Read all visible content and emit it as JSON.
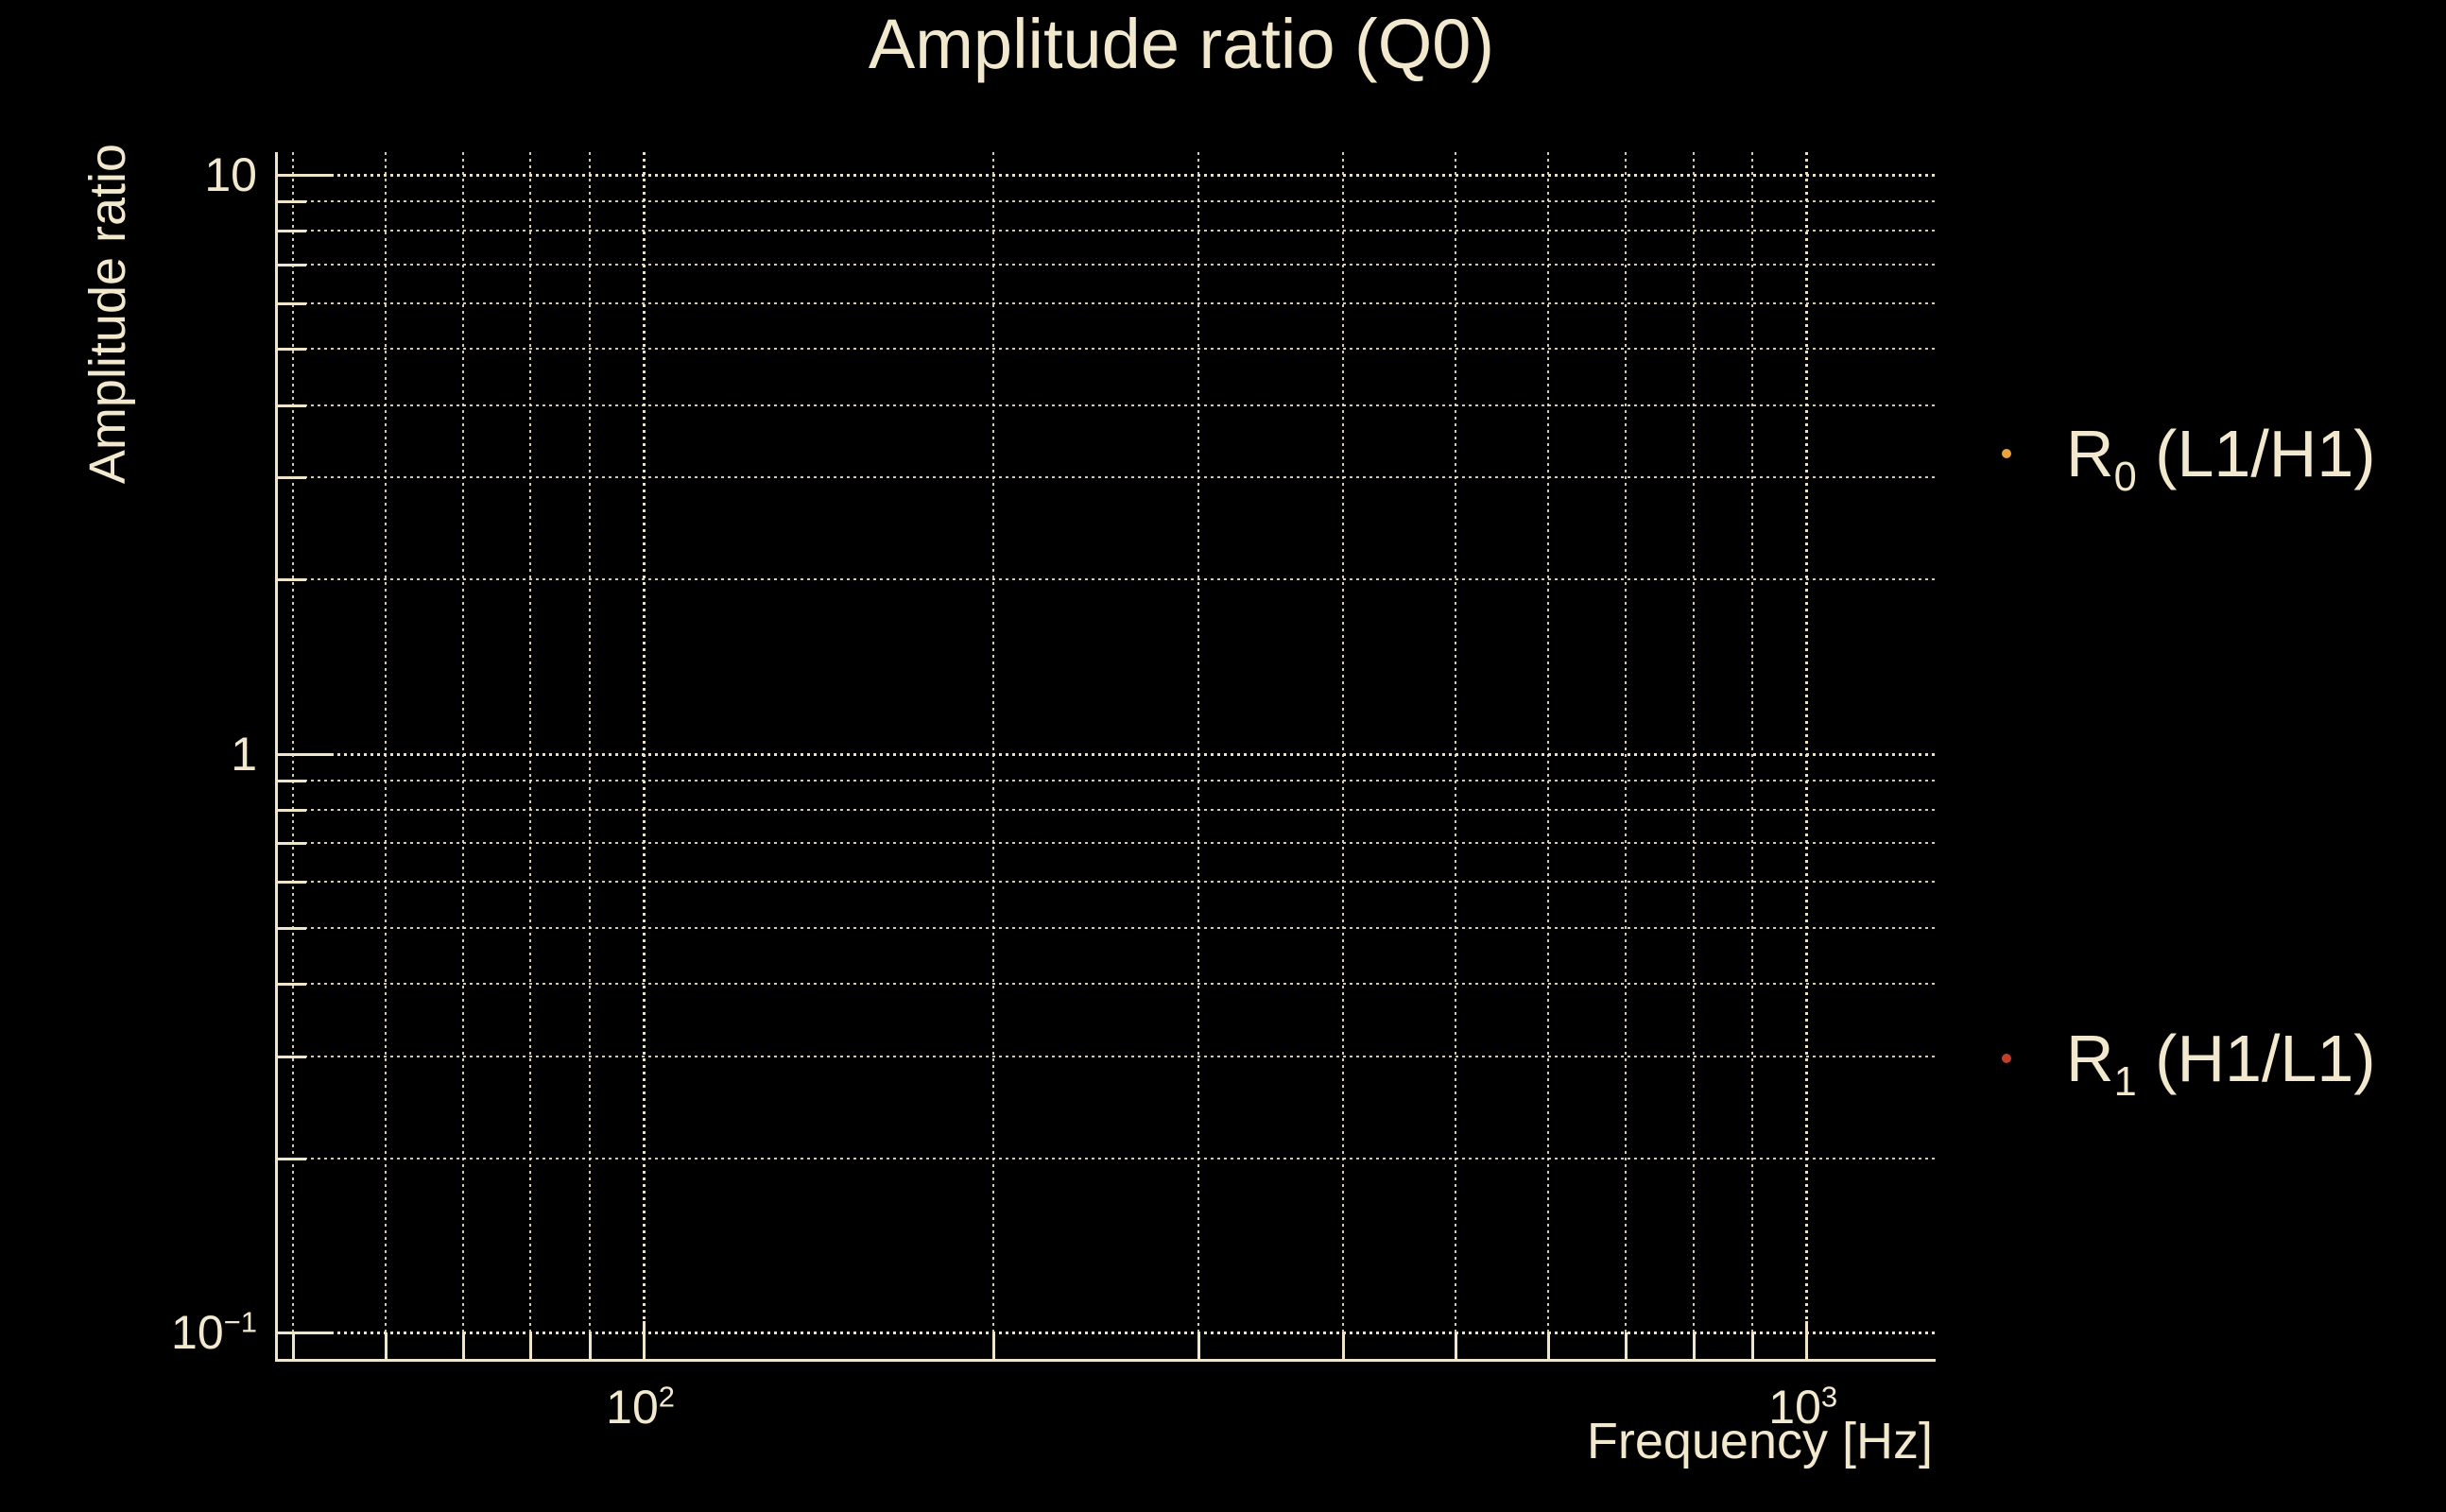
{
  "title": "Amplitude ratio (Q0)",
  "axes": {
    "ylabel": "Amplitude ratio",
    "xlabel": "Frequency [Hz]"
  },
  "colors": {
    "background": "#000000",
    "foreground": "#F1E8CD",
    "grid": "#EAE0C4",
    "series_r0": "#E8A33D",
    "series_r1": "#C23E2C"
  },
  "legend": {
    "position": "right-outside",
    "entries": [
      {
        "marker": "dot-icon",
        "color": "#E8A33D",
        "label_base": "R",
        "label_sub": "0",
        "label_rest": " (L1/H1)"
      },
      {
        "marker": "dot-icon",
        "color": "#C23E2C",
        "label_base": "R",
        "label_sub": "1",
        "label_rest": " (H1/L1)"
      }
    ]
  },
  "chart_data": {
    "type": "scatter",
    "title": "Amplitude ratio (Q0)",
    "xlabel": "Frequency [Hz]",
    "ylabel": "Amplitude ratio",
    "xscale": "log",
    "yscale": "log",
    "xlim": [
      48.5,
      1293
    ],
    "ylim": [
      0.09,
      10.95
    ],
    "grid": "on (dotted cream, major and minor)",
    "legend_position": "right-outside",
    "x_ticks": [
      {
        "value": 100,
        "label_base": "10",
        "label_exp": "2"
      },
      {
        "value": 1000,
        "label_base": "10",
        "label_exp": "3"
      }
    ],
    "x_minor_ticks": [
      50,
      60,
      70,
      80,
      90,
      200,
      300,
      400,
      500,
      600,
      700,
      800,
      900
    ],
    "y_ticks": [
      {
        "value": 10,
        "label_base": "10",
        "label_exp": ""
      },
      {
        "value": 1,
        "label_base": "1",
        "label_exp": ""
      },
      {
        "value": 0.1,
        "label_base": "10",
        "label_exp": "−1"
      }
    ],
    "y_minor_ticks": [
      0.2,
      0.3,
      0.4,
      0.5,
      0.6,
      0.7,
      0.8,
      0.9,
      2,
      3,
      4,
      5,
      6,
      7,
      8,
      9
    ],
    "series": [
      {
        "name": "R0 (L1/H1)",
        "color": "#E8A33D",
        "x": [],
        "y": [],
        "note": "no data points visible inside axes"
      },
      {
        "name": "R1 (H1/L1)",
        "color": "#C23E2C",
        "x": [],
        "y": [],
        "note": "no data points visible inside axes"
      }
    ]
  }
}
